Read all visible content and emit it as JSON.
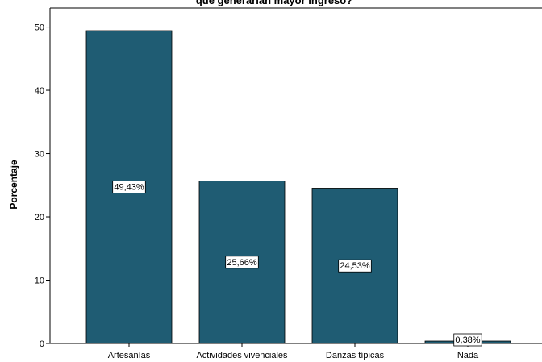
{
  "chart_data": {
    "type": "bar",
    "title": "que generarían mayor ingreso?",
    "xlabel": "",
    "ylabel": "Porcentaje",
    "ylim": [
      0,
      53
    ],
    "yticks": [
      0,
      10,
      20,
      30,
      40,
      50
    ],
    "categories": [
      "Artesanías",
      "Actividades vivenciales",
      "Danzas típicas",
      "Nada"
    ],
    "values": [
      49.43,
      25.66,
      24.53,
      0.38
    ],
    "value_labels": [
      "49,43%",
      "25,66%",
      "24,53%",
      "0,38%"
    ],
    "bar_color": "#1f5c73",
    "grid": false,
    "legend": "none"
  }
}
